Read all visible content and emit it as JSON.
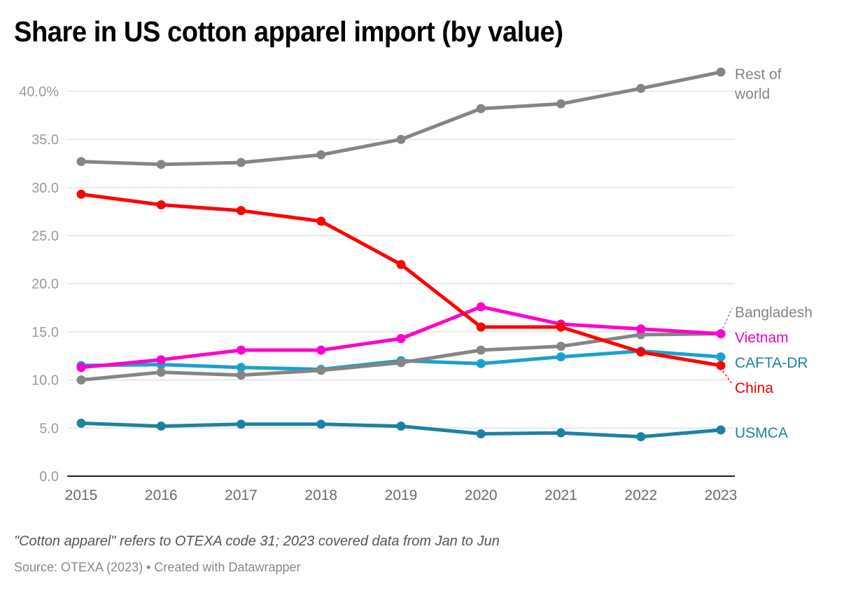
{
  "chart_data": {
    "type": "line",
    "title": "Share in US cotton apparel import (by value)",
    "xlabel": "",
    "ylabel": "",
    "x": [
      "2015",
      "2016",
      "2017",
      "2018",
      "2019",
      "2020",
      "2021",
      "2022",
      "2023"
    ],
    "ylim": [
      0,
      40
    ],
    "yticks": [
      "0.0",
      "5.0",
      "10.0",
      "15.0",
      "20.0",
      "25.0",
      "30.0",
      "35.0",
      "40.0%"
    ],
    "ytick_values": [
      0,
      5,
      10,
      15,
      20,
      25,
      30,
      35,
      40
    ],
    "grid": true,
    "legend": "direct labels at right",
    "series": [
      {
        "name": "Rest of world",
        "label_lines": [
          "Rest of",
          "world"
        ],
        "color": "#858585",
        "label_color": "#858585",
        "values": [
          32.7,
          32.4,
          32.6,
          33.4,
          35.0,
          38.2,
          38.7,
          40.3,
          42.0
        ]
      },
      {
        "name": "Bangladesh",
        "label_lines": [
          "Bangladesh"
        ],
        "color": "#858585",
        "label_color": "#858585",
        "values": [
          10.0,
          10.8,
          10.5,
          11.0,
          11.8,
          13.1,
          13.5,
          14.7,
          14.8
        ]
      },
      {
        "name": "CAFTA-DR",
        "label_lines": [
          "CAFTA-DR"
        ],
        "color": "#18a1cd",
        "label_color": "#1d81a2",
        "values": [
          11.5,
          11.6,
          11.3,
          11.1,
          12.0,
          11.7,
          12.4,
          13.0,
          12.4
        ]
      },
      {
        "name": "Vietnam",
        "label_lines": [
          "Vietnam"
        ],
        "color": "#ff00cc",
        "label_color": "#e00bbd",
        "values": [
          11.3,
          12.1,
          13.1,
          13.1,
          14.3,
          17.6,
          15.8,
          15.3,
          14.8
        ]
      },
      {
        "name": "China",
        "label_lines": [
          "China"
        ],
        "color": "#ff0000",
        "label_color": "#e80000",
        "values": [
          29.3,
          28.2,
          27.6,
          26.5,
          22.0,
          15.5,
          15.5,
          12.9,
          11.5
        ]
      },
      {
        "name": "USMCA",
        "label_lines": [
          "USMCA"
        ],
        "color": "#1d81a2",
        "label_color": "#1d81a2",
        "values": [
          5.5,
          5.2,
          5.4,
          5.4,
          5.2,
          4.4,
          4.5,
          4.1,
          4.8
        ]
      }
    ]
  },
  "footer": {
    "note": "\"Cotton apparel\" refers to OTEXA code 31; 2023 covered data from Jan to Jun",
    "source": "Source: OTEXA (2023) • Created with Datawrapper"
  }
}
